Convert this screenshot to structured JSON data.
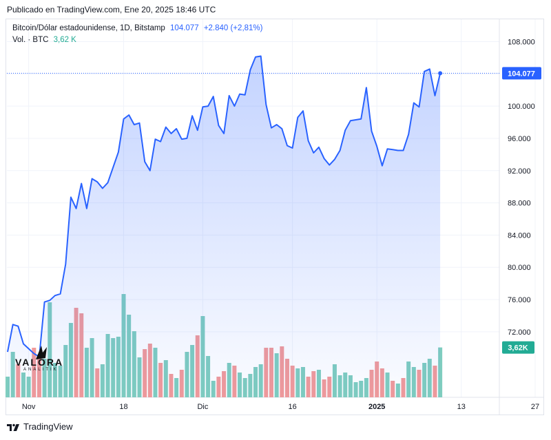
{
  "header": {
    "published": "Publicado en TradingView.com, Ene 20, 2025 18:46 UTC"
  },
  "legend": {
    "symbol": "Bitcoin/Dólar estadounidense, 1D, Bitstamp",
    "last": "104.077",
    "change": "+2.840 (+2,81%)",
    "vol_label": "Vol. · BTC",
    "vol_value": "3,62 K"
  },
  "footer": {
    "brand": "TradingView"
  },
  "watermark": {
    "brand": "VALORA",
    "sub": "ANALITIK"
  },
  "colors": {
    "line": "#2962ff",
    "area_top": "#c7d4fb",
    "vol_up": "#7fcdbf",
    "vol_down": "#f19a9a",
    "vol_label_bg": "#22ab94",
    "price_label_bg": "#2962ff"
  },
  "chart_data": {
    "type": "area",
    "title": "Bitcoin/Dólar estadounidense, 1D, Bitstamp",
    "x_tick_labels": [
      "Nov",
      "18",
      "Dic",
      "16",
      "2025",
      "13",
      "27"
    ],
    "y_tick_labels": [
      "72.000",
      "76.000",
      "80.000",
      "84.000",
      "88.000",
      "92.000",
      "96.000",
      "100.000",
      "104.000",
      "108.000"
    ],
    "ylim": [
      67000,
      110500
    ],
    "last_price_label": "104.077",
    "volume_label": "3,62K",
    "close": [
      69500,
      72900,
      72700,
      70500,
      69900,
      69300,
      68900,
      75700,
      75900,
      76500,
      76700,
      80400,
      88700,
      87300,
      90400,
      87300,
      91000,
      90600,
      89800,
      90500,
      92400,
      94300,
      98400,
      98900,
      97700,
      97900,
      93100,
      92000,
      95900,
      95600,
      97400,
      96600,
      97200,
      95900,
      96000,
      98800,
      97000,
      99900,
      100000,
      101200,
      97600,
      96600,
      101300,
      100000,
      101500,
      101400,
      104500,
      106100,
      106200,
      100200,
      97300,
      97700,
      97200,
      95100,
      94800,
      98600,
      99400,
      95700,
      94200,
      94900,
      93500,
      92700,
      93400,
      94500,
      97000,
      98200,
      98300,
      98400,
      102300,
      96900,
      95000,
      92600,
      94700,
      94600,
      94500,
      94500,
      96500,
      100400,
      99900,
      104300,
      104600,
      101300,
      104077
    ],
    "volume": [
      1.5,
      3.3,
      2.4,
      1.8,
      1.5,
      3.6,
      2.9,
      2.8,
      6.9,
      2.5,
      2.3,
      3.8,
      5.4,
      6.5,
      6.1,
      3.6,
      4.3,
      2.1,
      2.4,
      4.6,
      4.3,
      4.4,
      7.5,
      6.0,
      4.8,
      2.9,
      3.5,
      3.9,
      3.6,
      2.5,
      2.7,
      1.7,
      1.4,
      2.0,
      3.3,
      3.8,
      4.5,
      5.9,
      3.0,
      1.2,
      1.5,
      1.9,
      2.5,
      2.3,
      1.8,
      1.4,
      1.7,
      2.2,
      2.4,
      3.6,
      3.6,
      3.2,
      3.7,
      2.8,
      2.3,
      2.1,
      2.2,
      1.5,
      1.9,
      2.0,
      1.3,
      1.5,
      2.4,
      1.6,
      1.8,
      1.6,
      1.1,
      1.2,
      1.4,
      2.0,
      2.6,
      2.1,
      1.8,
      1.2,
      1.0,
      1.4,
      2.6,
      2.2,
      2.0,
      2.5,
      2.8,
      2.3,
      3.62
    ],
    "volume_direction": [
      "up",
      "up",
      "down",
      "up",
      "up",
      "down",
      "down",
      "up",
      "up",
      "up",
      "up",
      "up",
      "up",
      "down",
      "down",
      "up",
      "up",
      "down",
      "up",
      "up",
      "up",
      "up",
      "up",
      "up",
      "up",
      "up",
      "down",
      "down",
      "up",
      "down",
      "up",
      "down",
      "up",
      "down",
      "up",
      "up",
      "down",
      "up",
      "up",
      "up",
      "down",
      "down",
      "up",
      "down",
      "up",
      "up",
      "up",
      "up",
      "up",
      "down",
      "down",
      "up",
      "down",
      "down",
      "down",
      "up",
      "up",
      "down",
      "down",
      "up",
      "down",
      "down",
      "up",
      "up",
      "up",
      "up",
      "up",
      "up",
      "up",
      "down",
      "down",
      "down",
      "up",
      "down",
      "up",
      "down",
      "up",
      "up",
      "down",
      "up",
      "up",
      "down",
      "up"
    ]
  }
}
